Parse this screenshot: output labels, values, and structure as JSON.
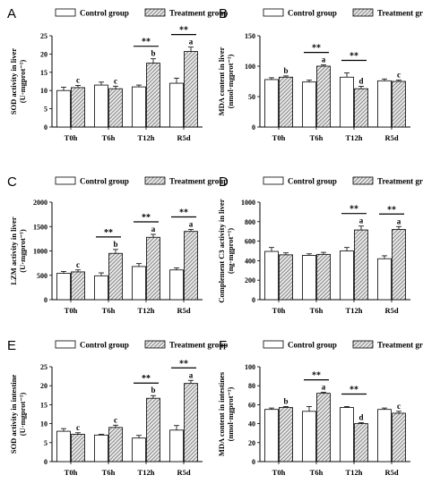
{
  "legend": {
    "control": "Control group",
    "treatment": "Treatment group"
  },
  "colors": {
    "control_fill": "#ffffff",
    "stroke": "#000000",
    "hatch": "#555555",
    "hatch_bg": "#e8e8e8"
  },
  "chart_data": [
    {
      "letter": "A",
      "type": "bar",
      "ylabel": [
        "SOD activity in liver",
        "(U·mgprot⁻¹)"
      ],
      "categories": [
        "T0h",
        "T6h",
        "T12h",
        "R5d"
      ],
      "ylim": [
        0,
        25
      ],
      "yticks": [
        0,
        5,
        10,
        15,
        20,
        25
      ],
      "series": [
        {
          "name": "Control group",
          "values": [
            10.0,
            11.5,
            11.0,
            12.0
          ],
          "errors": [
            0.9,
            0.8,
            0.5,
            1.4
          ]
        },
        {
          "name": "Treatment group",
          "values": [
            10.8,
            10.5,
            17.5,
            20.7
          ],
          "errors": [
            0.6,
            0.7,
            1.2,
            1.2
          ]
        }
      ],
      "sig_brackets": [
        {
          "cat": 2,
          "text": "**"
        },
        {
          "cat": 3,
          "text": "**"
        }
      ],
      "letters": [
        {
          "cat": 0,
          "text": "c"
        },
        {
          "cat": 1,
          "text": "c"
        },
        {
          "cat": 2,
          "text": "b"
        },
        {
          "cat": 3,
          "text": "a"
        }
      ]
    },
    {
      "letter": "B",
      "type": "bar",
      "ylabel": [
        "MDA content in liver",
        "(nmol·mgprot⁻¹)"
      ],
      "categories": [
        "T0h",
        "T6h",
        "T12h",
        "R5d"
      ],
      "ylim": [
        0,
        150
      ],
      "yticks": [
        0,
        50,
        100,
        150
      ],
      "series": [
        {
          "name": "Control group",
          "values": [
            78,
            74,
            82,
            76
          ],
          "errors": [
            3,
            3,
            7,
            3
          ]
        },
        {
          "name": "Treatment group",
          "values": [
            82,
            100,
            63,
            75
          ],
          "errors": [
            2,
            2,
            4,
            2
          ]
        }
      ],
      "sig_brackets": [
        {
          "cat": 1,
          "text": "**"
        },
        {
          "cat": 2,
          "text": "**"
        }
      ],
      "letters": [
        {
          "cat": 0,
          "text": "b"
        },
        {
          "cat": 1,
          "text": "a"
        },
        {
          "cat": 2,
          "text": "d"
        },
        {
          "cat": 3,
          "text": "c"
        }
      ]
    },
    {
      "letter": "C",
      "type": "bar",
      "ylabel": [
        "LZM activity in liver",
        "(U·mgprot⁻¹)"
      ],
      "categories": [
        "T0h",
        "T6h",
        "T12h",
        "R5d"
      ],
      "ylim": [
        0,
        2000
      ],
      "yticks": [
        0,
        500,
        1000,
        1500,
        2000
      ],
      "series": [
        {
          "name": "Control group",
          "values": [
            540,
            490,
            680,
            610
          ],
          "errors": [
            40,
            60,
            60,
            40
          ]
        },
        {
          "name": "Treatment group",
          "values": [
            570,
            950,
            1280,
            1400
          ],
          "errors": [
            40,
            80,
            60,
            40
          ]
        }
      ],
      "sig_brackets": [
        {
          "cat": 1,
          "text": "**"
        },
        {
          "cat": 2,
          "text": "**"
        },
        {
          "cat": 3,
          "text": "**"
        }
      ],
      "letters": [
        {
          "cat": 0,
          "text": "c"
        },
        {
          "cat": 1,
          "text": "b"
        },
        {
          "cat": 2,
          "text": "a"
        },
        {
          "cat": 3,
          "text": "a"
        }
      ]
    },
    {
      "letter": "D",
      "type": "bar",
      "ylabel": [
        "Complement C3 activity in liver",
        "(ng·mgprot⁻¹)"
      ],
      "categories": [
        "T0h",
        "T6h",
        "T12h",
        "R5d"
      ],
      "ylim": [
        0,
        1000
      ],
      "yticks": [
        0,
        200,
        400,
        600,
        800,
        1000
      ],
      "series": [
        {
          "name": "Control group",
          "values": [
            495,
            455,
            500,
            420
          ],
          "errors": [
            40,
            15,
            35,
            30
          ]
        },
        {
          "name": "Treatment group",
          "values": [
            460,
            465,
            715,
            720
          ],
          "errors": [
            20,
            20,
            40,
            30
          ]
        }
      ],
      "sig_brackets": [
        {
          "cat": 2,
          "text": "**"
        },
        {
          "cat": 3,
          "text": "**"
        }
      ],
      "letters": [
        {
          "cat": 2,
          "text": "a"
        },
        {
          "cat": 3,
          "text": "a"
        }
      ]
    },
    {
      "letter": "E",
      "type": "bar",
      "ylabel": [
        "SOD activity in intestine",
        "(U·mgprot⁻¹)"
      ],
      "categories": [
        "T0h",
        "T6h",
        "T12h",
        "R5d"
      ],
      "ylim": [
        0,
        25
      ],
      "yticks": [
        0,
        5,
        10,
        15,
        20,
        25
      ],
      "series": [
        {
          "name": "Control group",
          "values": [
            8.0,
            7.0,
            6.2,
            8.3
          ],
          "errors": [
            0.7,
            0.2,
            0.7,
            1.2
          ]
        },
        {
          "name": "Treatment group",
          "values": [
            7.2,
            9.0,
            16.7,
            20.6
          ],
          "errors": [
            0.4,
            0.6,
            0.7,
            0.8
          ]
        }
      ],
      "sig_brackets": [
        {
          "cat": 2,
          "text": "**"
        },
        {
          "cat": 3,
          "text": "**"
        }
      ],
      "letters": [
        {
          "cat": 0,
          "text": "c"
        },
        {
          "cat": 1,
          "text": "c"
        },
        {
          "cat": 2,
          "text": "b"
        },
        {
          "cat": 3,
          "text": "a"
        }
      ]
    },
    {
      "letter": "F",
      "type": "bar",
      "ylabel": [
        "MDA content in intestines",
        "(nmol·mgprot⁻¹)"
      ],
      "categories": [
        "T0h",
        "T6h",
        "T12h",
        "R5d"
      ],
      "ylim": [
        0,
        100
      ],
      "yticks": [
        0,
        20,
        40,
        60,
        80,
        100
      ],
      "series": [
        {
          "name": "Control group",
          "values": [
            55,
            53,
            57,
            55
          ],
          "errors": [
            1.5,
            5,
            1,
            1.5
          ]
        },
        {
          "name": "Treatment group",
          "values": [
            57,
            72,
            40,
            51
          ],
          "errors": [
            1,
            1,
            1,
            2
          ]
        }
      ],
      "sig_brackets": [
        {
          "cat": 1,
          "text": "**"
        },
        {
          "cat": 2,
          "text": "**"
        }
      ],
      "letters": [
        {
          "cat": 0,
          "text": "b"
        },
        {
          "cat": 1,
          "text": "a"
        },
        {
          "cat": 2,
          "text": "d"
        },
        {
          "cat": 3,
          "text": "c"
        }
      ]
    }
  ]
}
